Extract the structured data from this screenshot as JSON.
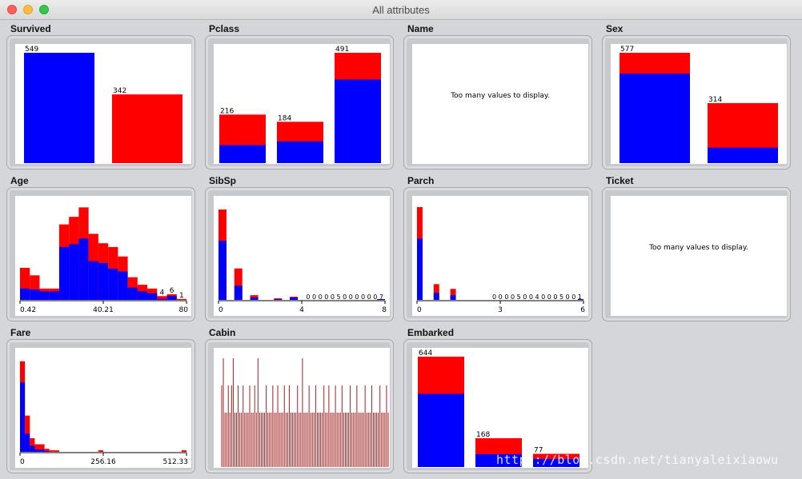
{
  "window": {
    "title": "All attributes"
  },
  "colors": {
    "blue": "#0000ff",
    "red": "#ff0000",
    "cabin": "#a02020"
  },
  "panels": [
    {
      "name": "Survived",
      "kind": "bar",
      "bars": [
        {
          "label": "549",
          "total": 549,
          "blue": 549
        },
        {
          "label": "342",
          "total": 342,
          "red_only": true
        }
      ]
    },
    {
      "name": "Pclass",
      "kind": "bar",
      "bars": [
        {
          "label": "216",
          "total": 216,
          "blue": 80
        },
        {
          "label": "184",
          "total": 184,
          "blue": 97
        },
        {
          "label": "491",
          "total": 491,
          "blue": 372
        }
      ]
    },
    {
      "name": "Name",
      "kind": "text",
      "message": "Too many values to display."
    },
    {
      "name": "Sex",
      "kind": "bar",
      "bars": [
        {
          "label": "577",
          "total": 577,
          "blue": 468
        },
        {
          "label": "314",
          "total": 314,
          "blue": 81
        }
      ]
    },
    {
      "name": "Age",
      "kind": "hist",
      "ymax": 100,
      "bins": [
        {
          "total": 34,
          "blue": 12
        },
        {
          "total": 26,
          "blue": 11
        },
        {
          "total": 12,
          "blue": 9
        },
        {
          "total": 12,
          "blue": 9
        },
        {
          "total": 80,
          "blue": 56
        },
        {
          "total": 88,
          "blue": 59
        },
        {
          "total": 98,
          "blue": 65
        },
        {
          "total": 70,
          "blue": 41
        },
        {
          "total": 60,
          "blue": 39
        },
        {
          "total": 56,
          "blue": 33
        },
        {
          "total": 46,
          "blue": 30
        },
        {
          "total": 24,
          "blue": 13
        },
        {
          "total": 16,
          "blue": 9
        },
        {
          "total": 12,
          "blue": 7
        },
        {
          "total": 4,
          "blue": 1
        },
        {
          "total": 6,
          "blue": 4
        },
        {
          "total": 1,
          "blue": 0
        }
      ],
      "labels": [
        {
          "bin": 14,
          "text": "4"
        },
        {
          "bin": 15,
          "text": "6"
        },
        {
          "bin": 16,
          "text": "1"
        }
      ],
      "axis": [
        "0.42",
        "40.21",
        "80"
      ]
    },
    {
      "name": "SibSp",
      "kind": "hist",
      "ymax": 120,
      "bins": [
        {
          "total": 115,
          "blue": 75
        },
        {
          "total": 0,
          "blue": 0
        },
        {
          "total": 40,
          "blue": 18
        },
        {
          "total": 0,
          "blue": 0
        },
        {
          "total": 6,
          "blue": 3
        },
        {
          "total": 0,
          "blue": 0
        },
        {
          "total": 0,
          "blue": 0
        },
        {
          "total": 2,
          "blue": 1
        },
        {
          "total": 0,
          "blue": 0
        },
        {
          "total": 4,
          "blue": 3
        },
        {
          "total": 0,
          "blue": 0
        },
        {
          "total": 0,
          "blue": 0
        },
        {
          "total": 0,
          "blue": 0
        },
        {
          "total": 0,
          "blue": 0
        },
        {
          "total": 0,
          "blue": 0
        },
        {
          "total": 0,
          "blue": 0
        },
        {
          "total": 0,
          "blue": 0
        },
        {
          "total": 0,
          "blue": 0
        },
        {
          "total": 0,
          "blue": 0
        },
        {
          "total": 0,
          "blue": 0
        },
        {
          "total": 1,
          "blue": 1
        }
      ],
      "counts": "0 0 0 0 0 5 0 0 0 0 0 0 7",
      "axis": [
        "0",
        "4",
        "8"
      ]
    },
    {
      "name": "Parch",
      "kind": "hist",
      "ymax": 120,
      "bins": [
        {
          "total": 118,
          "blue": 78
        },
        {
          "total": 0,
          "blue": 0
        },
        {
          "total": 0,
          "blue": 0
        },
        {
          "total": 20,
          "blue": 9
        },
        {
          "total": 0,
          "blue": 0
        },
        {
          "total": 0,
          "blue": 0
        },
        {
          "total": 14,
          "blue": 6
        },
        {
          "total": 0,
          "blue": 0
        },
        {
          "total": 0,
          "blue": 0
        },
        {
          "total": 0,
          "blue": 0
        },
        {
          "total": 0,
          "blue": 0
        },
        {
          "total": 0,
          "blue": 0
        },
        {
          "total": 0,
          "blue": 0
        },
        {
          "total": 0,
          "blue": 0
        },
        {
          "total": 0,
          "blue": 0
        },
        {
          "total": 0,
          "blue": 0
        },
        {
          "total": 0,
          "blue": 0
        },
        {
          "total": 0,
          "blue": 0
        },
        {
          "total": 0,
          "blue": 0
        },
        {
          "total": 0,
          "blue": 0
        },
        {
          "total": 0,
          "blue": 0
        },
        {
          "total": 0,
          "blue": 0
        },
        {
          "total": 0,
          "blue": 0
        },
        {
          "total": 0,
          "blue": 0
        },
        {
          "total": 0,
          "blue": 0
        },
        {
          "total": 0,
          "blue": 0
        },
        {
          "total": 0,
          "blue": 0
        },
        {
          "total": 0,
          "blue": 0
        },
        {
          "total": 0,
          "blue": 0
        },
        {
          "total": 1,
          "blue": 1
        }
      ],
      "counts": "0 0 0 0 5 0 0 4 0 0 0 5 0 0 1",
      "axis": [
        "0",
        "3",
        "6"
      ]
    },
    {
      "name": "Ticket",
      "kind": "text",
      "message": "Too many values to display."
    },
    {
      "name": "Fare",
      "kind": "hist",
      "ymax": 125,
      "bins": [
        {
          "total": 120,
          "blue": 92
        },
        {
          "total": 48,
          "blue": 24
        },
        {
          "total": 18,
          "blue": 8
        },
        {
          "total": 10,
          "blue": 3
        },
        {
          "total": 10,
          "blue": 3
        },
        {
          "total": 4,
          "blue": 1
        },
        {
          "total": 2,
          "blue": 0
        },
        {
          "total": 2,
          "blue": 0
        },
        {
          "total": 0,
          "blue": 0
        },
        {
          "total": 0,
          "blue": 0
        },
        {
          "total": 0,
          "blue": 0
        },
        {
          "total": 0,
          "blue": 0
        },
        {
          "total": 0,
          "blue": 0
        },
        {
          "total": 0,
          "blue": 0
        },
        {
          "total": 0,
          "blue": 0
        },
        {
          "total": 0,
          "blue": 0
        },
        {
          "total": 2,
          "blue": 0
        },
        {
          "total": 0,
          "blue": 0
        },
        {
          "total": 0,
          "blue": 0
        },
        {
          "total": 0,
          "blue": 0
        },
        {
          "total": 0,
          "blue": 0
        },
        {
          "total": 0,
          "blue": 0
        },
        {
          "total": 0,
          "blue": 0
        },
        {
          "total": 0,
          "blue": 0
        },
        {
          "total": 0,
          "blue": 0
        },
        {
          "total": 0,
          "blue": 0
        },
        {
          "total": 0,
          "blue": 0
        },
        {
          "total": 0,
          "blue": 0
        },
        {
          "total": 0,
          "blue": 0
        },
        {
          "total": 0,
          "blue": 0
        },
        {
          "total": 0,
          "blue": 0
        },
        {
          "total": 0,
          "blue": 0
        },
        {
          "total": 0,
          "blue": 0
        },
        {
          "total": 2,
          "blue": 0
        }
      ],
      "axis": [
        "0",
        "256.16",
        "512.33"
      ]
    },
    {
      "name": "Cabin",
      "kind": "cabin",
      "tall": [
        2,
        4,
        8,
        10,
        12,
        14,
        16,
        18,
        22,
        26,
        28,
        32,
        36,
        40,
        44,
        48,
        52,
        56,
        60,
        64,
        68,
        72,
        76,
        80,
        84,
        88,
        92,
        96,
        100
      ],
      "counts": [
        3,
        4,
        2,
        2,
        3,
        2,
        3,
        4,
        2,
        2,
        3,
        2,
        2,
        3,
        2,
        2,
        2,
        3,
        2,
        2,
        3,
        2,
        4,
        2,
        2,
        2,
        2,
        3,
        2,
        2,
        2,
        3,
        2,
        2,
        3,
        2,
        2,
        2,
        3,
        2,
        2,
        3,
        2,
        2,
        2,
        2,
        3,
        2,
        2,
        4,
        2,
        2,
        2,
        3,
        2,
        2,
        2,
        3,
        2,
        2,
        2,
        2,
        3,
        2,
        2,
        3,
        2,
        2,
        2,
        3,
        2,
        2,
        2,
        3,
        2,
        2,
        2,
        2,
        3,
        2,
        2,
        2,
        3,
        2,
        2,
        2,
        2,
        3,
        2,
        2,
        2,
        3,
        2,
        2,
        2,
        2,
        3,
        2,
        2,
        2,
        3,
        2
      ]
    },
    {
      "name": "Embarked",
      "kind": "bar",
      "bars": [
        {
          "label": "644",
          "total": 644,
          "blue": 427
        },
        {
          "label": "168",
          "total": 168,
          "blue": 75
        },
        {
          "label": "77",
          "total": 77,
          "blue": 47
        }
      ]
    }
  ],
  "watermark": "https://blog.csdn.net/tianyaleixiaowu"
}
